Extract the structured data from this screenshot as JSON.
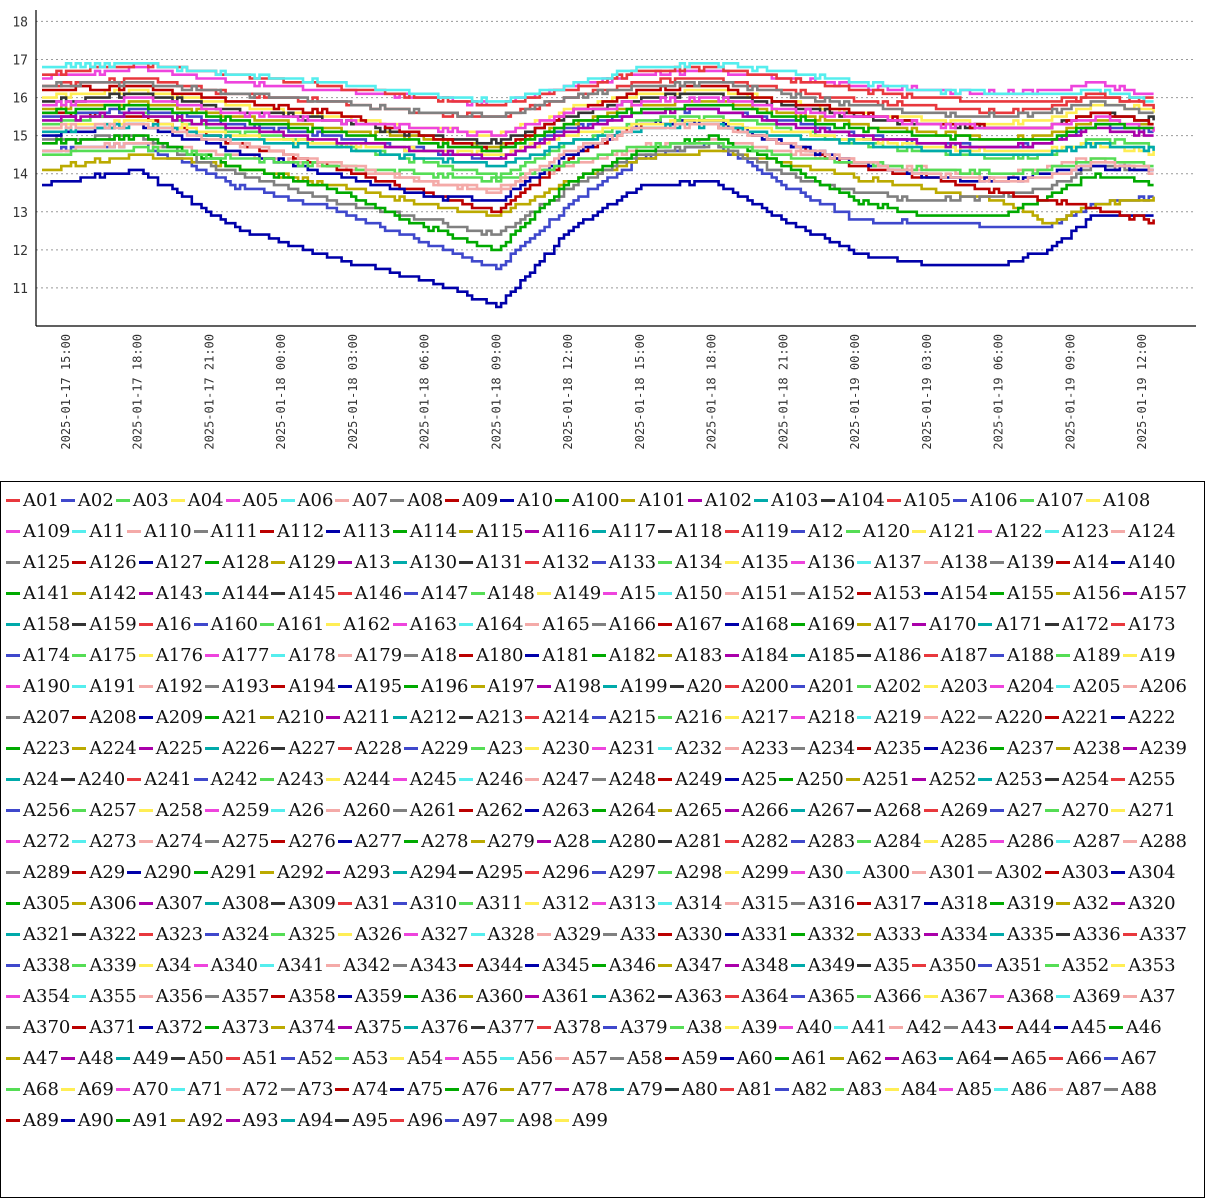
{
  "chart_data": {
    "type": "line",
    "title": "",
    "xlabel": "",
    "ylabel": "",
    "ylim": [
      10,
      18.3
    ],
    "yticks": [
      11,
      12,
      13,
      14,
      15,
      16,
      17,
      18
    ],
    "grid": "horizontal-dashed",
    "legend_placement": "bottom-box",
    "x_range": [
      "2025-01-17 13:45",
      "2025-01-19 14:15"
    ],
    "x_ticks": [
      "2025-01-17 15:00",
      "2025-01-17 18:00",
      "2025-01-17 21:00",
      "2025-01-18 00:00",
      "2025-01-18 03:00",
      "2025-01-18 06:00",
      "2025-01-18 09:00",
      "2025-01-18 12:00",
      "2025-01-18 15:00",
      "2025-01-18 18:00",
      "2025-01-18 21:00",
      "2025-01-19 00:00",
      "2025-01-19 03:00",
      "2025-01-19 06:00",
      "2025-01-19 09:00",
      "2025-01-19 12:00"
    ],
    "key_x": [
      "2025-01-17 14:00",
      "2025-01-17 18:00",
      "2025-01-17 22:00",
      "2025-01-18 02:00",
      "2025-01-18 06:00",
      "2025-01-18 09:00",
      "2025-01-18 12:00",
      "2025-01-18 15:00",
      "2025-01-18 18:00",
      "2025-01-18 21:00",
      "2025-01-19 00:00",
      "2025-01-19 03:00",
      "2025-01-19 06:00",
      "2025-01-19 08:00",
      "2025-01-19 10:00",
      "2025-01-19 14:00"
    ],
    "palette": [
      "#e8383d",
      "#3f48cc",
      "#55dd55",
      "#ffee55",
      "#ee44dd",
      "#55eeee",
      "#f4aaa8",
      "#808080",
      "#bb0000",
      "#0000aa",
      "#00aa00",
      "#bbaa00",
      "#aa00aa",
      "#00aaaa",
      "#333333"
    ],
    "series_labels": [
      "A01",
      "A02",
      "A03",
      "A04",
      "A05",
      "A06",
      "A07",
      "A08",
      "A09",
      "A10",
      "A100",
      "A101",
      "A102",
      "A103",
      "A104",
      "A105",
      "A106",
      "A107",
      "A108",
      "A109",
      "A11",
      "A110",
      "A111",
      "A112",
      "A113",
      "A114",
      "A115",
      "A116",
      "A117",
      "A118",
      "A119",
      "A12",
      "A120",
      "A121",
      "A122",
      "A123",
      "A124",
      "A125",
      "A126",
      "A127",
      "A128",
      "A129",
      "A13",
      "A130",
      "A131",
      "A132",
      "A133",
      "A134",
      "A135",
      "A136",
      "A137",
      "A138",
      "A139",
      "A14",
      "A140",
      "A141",
      "A142",
      "A143",
      "A144",
      "A145",
      "A146",
      "A147",
      "A148",
      "A149",
      "A15",
      "A150",
      "A151",
      "A152",
      "A153",
      "A154",
      "A155",
      "A156",
      "A157",
      "A158",
      "A159",
      "A16",
      "A160",
      "A161",
      "A162",
      "A163",
      "A164",
      "A165",
      "A166",
      "A167",
      "A168",
      "A169",
      "A17",
      "A170",
      "A171",
      "A172",
      "A173",
      "A174",
      "A175",
      "A176",
      "A177",
      "A178",
      "A179",
      "A18",
      "A180",
      "A181",
      "A182",
      "A183",
      "A184",
      "A185",
      "A186",
      "A187",
      "A188",
      "A189",
      "A19",
      "A190",
      "A191",
      "A192",
      "A193",
      "A194",
      "A195",
      "A196",
      "A197",
      "A198",
      "A199",
      "A20",
      "A200",
      "A201",
      "A202",
      "A203",
      "A204",
      "A205",
      "A206",
      "A207",
      "A208",
      "A209",
      "A21",
      "A210",
      "A211",
      "A212",
      "A213",
      "A214",
      "A215",
      "A216",
      "A217",
      "A218",
      "A219",
      "A22",
      "A220",
      "A221",
      "A222",
      "A223",
      "A224",
      "A225",
      "A226",
      "A227",
      "A228",
      "A229",
      "A23",
      "A230",
      "A231",
      "A232",
      "A233",
      "A234",
      "A235",
      "A236",
      "A237",
      "A238",
      "A239",
      "A24",
      "A240",
      "A241",
      "A242",
      "A243",
      "A244",
      "A245",
      "A246",
      "A247",
      "A248",
      "A249",
      "A25",
      "A250",
      "A251",
      "A252",
      "A253",
      "A254",
      "A255",
      "A256",
      "A257",
      "A258",
      "A259",
      "A26",
      "A260",
      "A261",
      "A262",
      "A263",
      "A264",
      "A265",
      "A266",
      "A267",
      "A268",
      "A269",
      "A27",
      "A270",
      "A271",
      "A272",
      "A273",
      "A274",
      "A275",
      "A276",
      "A277",
      "A278",
      "A279",
      "A28",
      "A280",
      "A281",
      "A282",
      "A283",
      "A284",
      "A285",
      "A286",
      "A287",
      "A288",
      "A289",
      "A29",
      "A290",
      "A291",
      "A292",
      "A293",
      "A294",
      "A295",
      "A296",
      "A297",
      "A298",
      "A299",
      "A30",
      "A300",
      "A301",
      "A302",
      "A303",
      "A304",
      "A305",
      "A306",
      "A307",
      "A308",
      "A309",
      "A31",
      "A310",
      "A311",
      "A312",
      "A313",
      "A314",
      "A315",
      "A316",
      "A317",
      "A318",
      "A319",
      "A32",
      "A320",
      "A321",
      "A322",
      "A323",
      "A324",
      "A325",
      "A326",
      "A327",
      "A328",
      "A329",
      "A33",
      "A330",
      "A331",
      "A332",
      "A333",
      "A334",
      "A335",
      "A336",
      "A337",
      "A338",
      "A339",
      "A34",
      "A340",
      "A341",
      "A342",
      "A343",
      "A344",
      "A345",
      "A346",
      "A347",
      "A348",
      "A349",
      "A35",
      "A350",
      "A351",
      "A352",
      "A353",
      "A354",
      "A355",
      "A356",
      "A357",
      "A358",
      "A359",
      "A36",
      "A360",
      "A361",
      "A362",
      "A363",
      "A364",
      "A365",
      "A366",
      "A367",
      "A368",
      "A369",
      "A37",
      "A370",
      "A371",
      "A372",
      "A373",
      "A374",
      "A375",
      "A376",
      "A377",
      "A378",
      "A379",
      "A38",
      "A39",
      "A40",
      "A41",
      "A42",
      "A43",
      "A44",
      "A45",
      "A46",
      "A47",
      "A48",
      "A49",
      "A50",
      "A51",
      "A52",
      "A53",
      "A54",
      "A55",
      "A56",
      "A57",
      "A58",
      "A59",
      "A60",
      "A61",
      "A62",
      "A63",
      "A64",
      "A65",
      "A66",
      "A67",
      "A68",
      "A69",
      "A70",
      "A71",
      "A72",
      "A73",
      "A74",
      "A75",
      "A76",
      "A77",
      "A78",
      "A79",
      "A80",
      "A81",
      "A82",
      "A83",
      "A84",
      "A85",
      "A86",
      "A87",
      "A88",
      "A89",
      "A90",
      "A91",
      "A92",
      "A93",
      "A94",
      "A95",
      "A96",
      "A97",
      "A98",
      "A99"
    ],
    "series": [
      {
        "name": "A10",
        "values": [
          13.7,
          14.1,
          12.6,
          11.8,
          11.2,
          10.5,
          12.5,
          13.7,
          13.8,
          12.8,
          11.9,
          11.6,
          11.6,
          12.0,
          12.9,
          12.9
        ]
      },
      {
        "name": "A02",
        "values": [
          14.6,
          14.8,
          13.7,
          13.1,
          12.2,
          11.5,
          13.2,
          14.4,
          14.8,
          13.7,
          12.8,
          12.7,
          12.6,
          12.6,
          13.2,
          13.5
        ]
      },
      {
        "name": "A92",
        "values": [
          14.1,
          14.5,
          14.2,
          13.7,
          13.2,
          12.9,
          13.8,
          14.4,
          14.6,
          14.3,
          13.9,
          13.6,
          13.3,
          12.7,
          13.2,
          13.5
        ]
      },
      {
        "name": "A07",
        "values": [
          14.6,
          14.8,
          14.5,
          14.2,
          13.8,
          13.6,
          14.2,
          14.7,
          14.9,
          14.6,
          14.3,
          14.1,
          13.9,
          14.2,
          14.4,
          13.8
        ]
      },
      {
        "name": "A08",
        "values": [
          14.9,
          15.0,
          14.0,
          13.3,
          12.8,
          12.4,
          13.6,
          14.5,
          14.8,
          14.0,
          13.5,
          13.3,
          13.4,
          13.6,
          14.2,
          14.0
        ]
      },
      {
        "name": "A100",
        "values": [
          14.8,
          15.0,
          14.2,
          13.6,
          12.6,
          12.0,
          13.8,
          14.6,
          15.0,
          14.2,
          13.3,
          12.9,
          12.9,
          13.4,
          14.0,
          13.6
        ]
      },
      {
        "name": "A09",
        "values": [
          15.6,
          15.5,
          14.8,
          14.2,
          13.5,
          13.0,
          14.4,
          15.3,
          15.3,
          14.8,
          14.2,
          13.9,
          13.5,
          13.3,
          13.1,
          12.5
        ]
      },
      {
        "name": "A113",
        "values": [
          15.0,
          15.3,
          14.6,
          14.0,
          13.4,
          13.3,
          14.5,
          15.3,
          15.4,
          14.8,
          14.3,
          13.9,
          13.8,
          14.0,
          14.2,
          14.0
        ]
      },
      {
        "name": "A03",
        "values": [
          15.3,
          15.6,
          15.1,
          14.8,
          14.3,
          13.9,
          14.8,
          15.4,
          15.5,
          15.2,
          14.8,
          14.6,
          14.4,
          14.5,
          14.9,
          14.6
        ]
      },
      {
        "name": "A106",
        "values": [
          15.5,
          15.7,
          15.3,
          15.0,
          14.6,
          14.4,
          15.2,
          15.6,
          15.7,
          15.4,
          15.0,
          14.8,
          14.7,
          14.8,
          15.3,
          15.0
        ]
      },
      {
        "name": "A101",
        "values": [
          15.7,
          15.9,
          15.5,
          15.2,
          14.9,
          14.7,
          15.3,
          15.8,
          15.9,
          15.6,
          15.3,
          15.1,
          14.9,
          15.0,
          15.4,
          15.2
        ]
      },
      {
        "name": "A04",
        "values": [
          16.0,
          16.2,
          15.8,
          15.5,
          15.2,
          15.0,
          15.7,
          16.1,
          16.2,
          15.9,
          15.6,
          15.4,
          15.3,
          15.4,
          15.8,
          15.6
        ]
      },
      {
        "name": "A05",
        "values": [
          16.5,
          16.8,
          16.4,
          16.2,
          16.0,
          15.8,
          16.3,
          16.6,
          16.7,
          16.5,
          16.3,
          16.2,
          16.1,
          16.2,
          16.4,
          15.8
        ]
      },
      {
        "name": "A01",
        "values": [
          16.6,
          16.9,
          16.6,
          16.3,
          16.0,
          15.8,
          16.2,
          16.7,
          16.8,
          16.5,
          16.2,
          16.0,
          15.9,
          15.9,
          16.0,
          15.9
        ]
      },
      {
        "name": "A06",
        "values": [
          16.8,
          16.9,
          16.6,
          16.4,
          16.1,
          15.9,
          16.3,
          16.8,
          16.9,
          16.7,
          16.4,
          16.2,
          16.1,
          16.1,
          16.2,
          15.7
        ]
      },
      {
        "name": "A105",
        "values": [
          16.3,
          16.5,
          16.1,
          15.9,
          15.6,
          15.5,
          16.0,
          16.4,
          16.5,
          16.2,
          15.9,
          15.8,
          15.6,
          15.7,
          16.1,
          15.5
        ]
      },
      {
        "name": "A104",
        "values": [
          15.9,
          16.1,
          15.7,
          15.4,
          15.0,
          14.8,
          15.5,
          16.0,
          16.1,
          15.8,
          15.5,
          15.3,
          15.2,
          15.2,
          15.6,
          15.3
        ]
      },
      {
        "name": "A112",
        "values": [
          16.2,
          16.3,
          15.9,
          15.6,
          15.0,
          14.6,
          15.6,
          16.2,
          16.3,
          15.9,
          15.6,
          15.3,
          15.2,
          15.2,
          15.6,
          15.2
        ]
      },
      {
        "name": "A111",
        "values": [
          16.3,
          16.4,
          16.1,
          15.9,
          15.6,
          15.5,
          16.0,
          16.3,
          16.4,
          16.1,
          15.8,
          15.6,
          15.5,
          15.6,
          15.9,
          15.4
        ]
      },
      {
        "name": "A109",
        "values": [
          15.8,
          16.0,
          15.6,
          15.4,
          15.2,
          15.0,
          15.6,
          15.9,
          16.0,
          15.7,
          15.5,
          15.3,
          15.2,
          15.2,
          15.5,
          14.9
        ]
      },
      {
        "name": "A108",
        "values": [
          15.2,
          15.4,
          15.0,
          14.8,
          14.6,
          14.5,
          15.0,
          15.3,
          15.4,
          15.1,
          14.9,
          14.7,
          14.6,
          14.6,
          14.8,
          14.4
        ]
      },
      {
        "name": "A102",
        "values": [
          15.4,
          15.6,
          15.2,
          14.9,
          14.6,
          14.4,
          15.1,
          15.6,
          15.7,
          15.3,
          15.0,
          14.8,
          14.7,
          14.8,
          15.2,
          14.9
        ]
      },
      {
        "name": "A103",
        "values": [
          15.1,
          15.3,
          14.9,
          14.7,
          14.4,
          14.2,
          14.8,
          15.2,
          15.3,
          15.0,
          14.8,
          14.6,
          14.5,
          14.5,
          14.8,
          14.5
        ]
      },
      {
        "name": "A107",
        "values": [
          14.5,
          14.7,
          14.4,
          14.2,
          14.0,
          13.8,
          14.3,
          14.7,
          14.8,
          14.5,
          14.3,
          14.1,
          14.0,
          14.1,
          14.4,
          14.1
        ]
      },
      {
        "name": "A110",
        "values": [
          15.2,
          15.3,
          14.8,
          14.3,
          13.8,
          13.5,
          14.6,
          15.2,
          15.3,
          14.8,
          14.3,
          14.0,
          13.8,
          13.9,
          14.3,
          14.0
        ]
      },
      {
        "name": "A114",
        "values": [
          15.6,
          15.8,
          15.4,
          15.1,
          14.8,
          14.6,
          15.3,
          15.7,
          15.8,
          15.5,
          15.2,
          15.0,
          14.9,
          14.9,
          15.3,
          15.1
        ]
      }
    ]
  }
}
